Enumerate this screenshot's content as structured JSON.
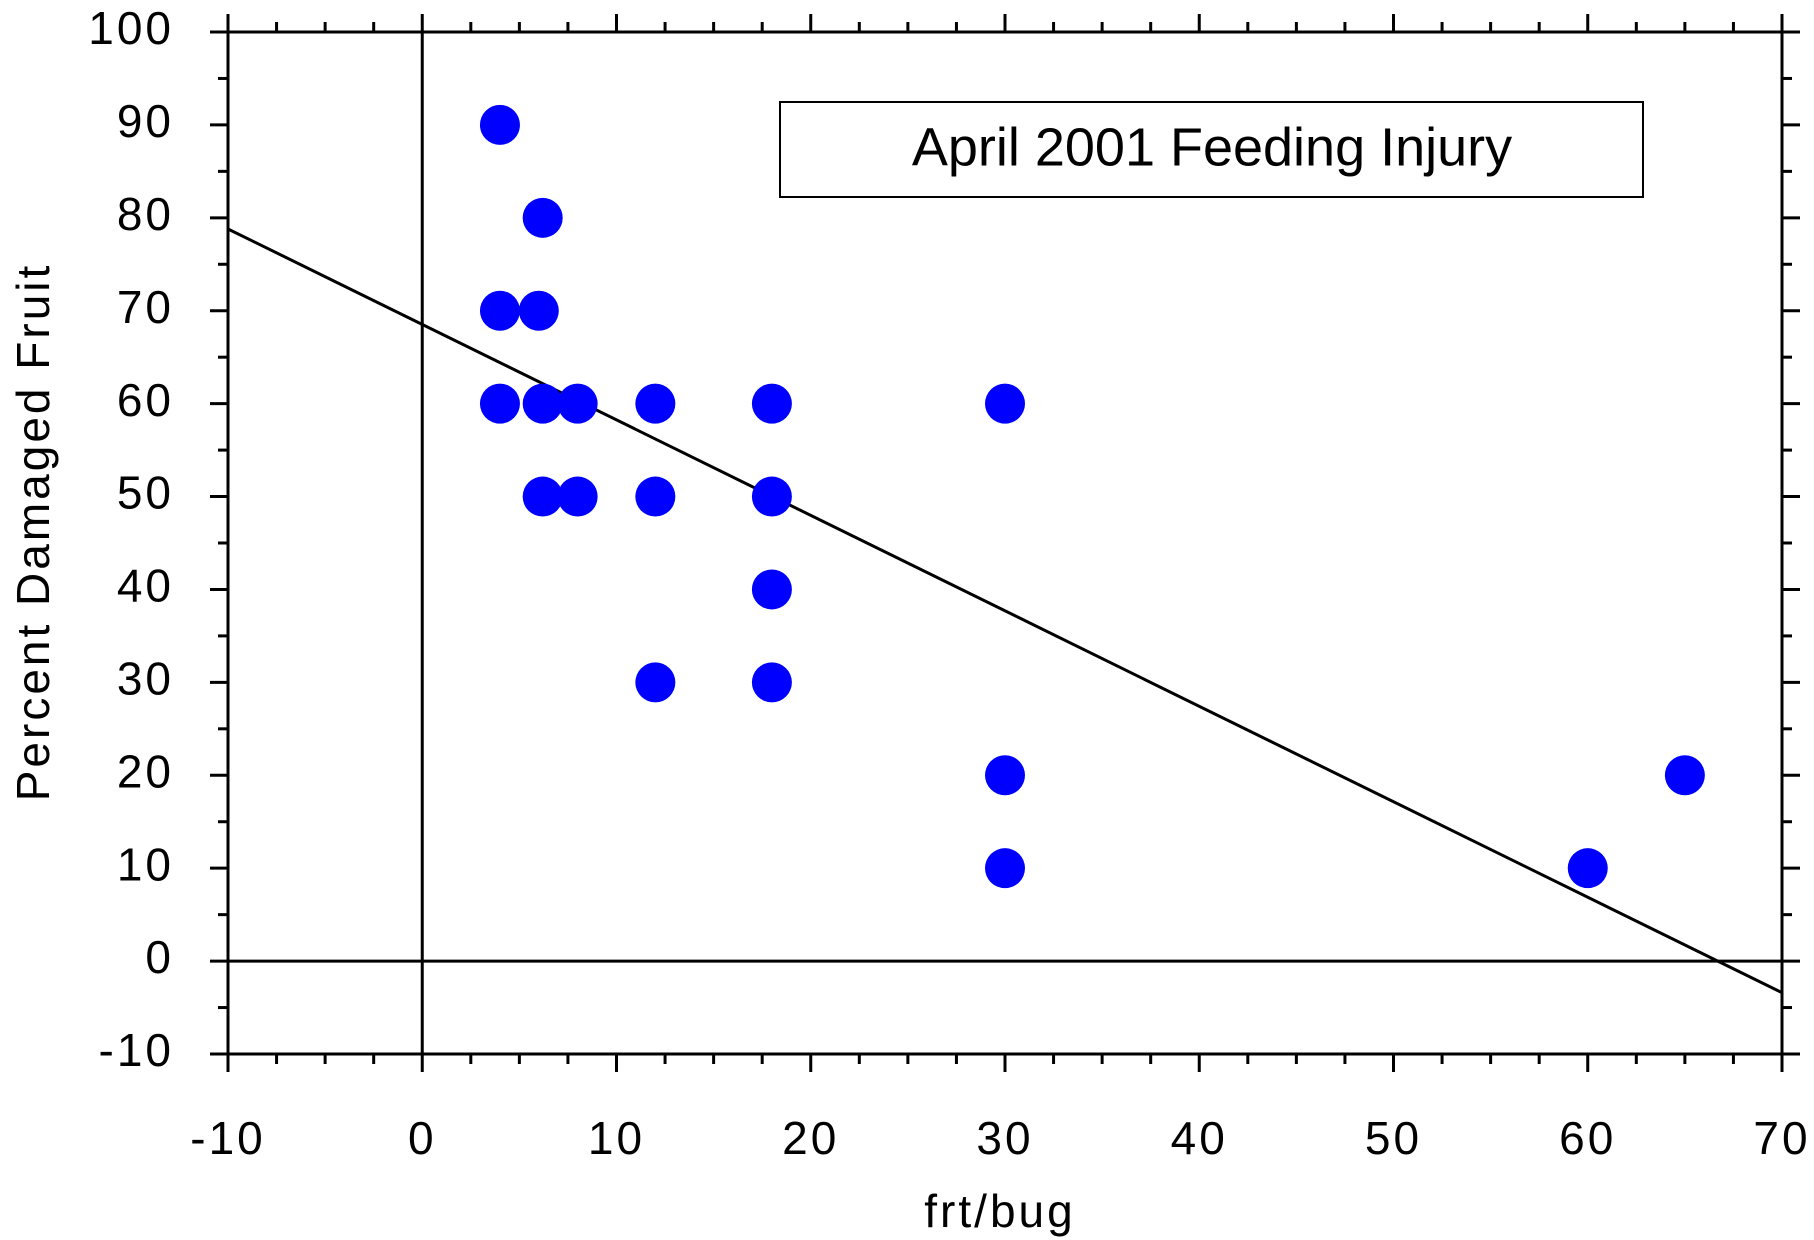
{
  "chart_data": {
    "type": "scatter",
    "annotation": "April 2001 Feeding Injury",
    "x_label": "frt/bug",
    "y_label": "Percent Damaged Fruit",
    "color": "#0000ff",
    "x": [
      4,
      6.2,
      4,
      6,
      4,
      6.2,
      8,
      12,
      18,
      30,
      6.2,
      8,
      12,
      18,
      18,
      12,
      18,
      30,
      30,
      60,
      65
    ],
    "values": [
      90,
      80,
      70,
      70,
      60,
      60,
      60,
      60,
      60,
      60,
      50,
      50,
      50,
      50,
      40,
      30,
      30,
      20,
      10,
      10,
      20
    ],
    "fit_line": {
      "x": [
        -10,
        70
      ],
      "y": [
        78.8,
        -3.4
      ]
    },
    "xlim": [
      -10,
      70
    ],
    "xticks": [
      -10,
      0,
      10,
      20,
      30,
      40,
      50,
      60,
      70
    ],
    "ylim": [
      -10,
      100
    ],
    "yticks": [
      -10,
      0,
      10,
      20,
      30,
      40,
      50,
      60,
      70,
      80,
      90,
      100
    ]
  }
}
